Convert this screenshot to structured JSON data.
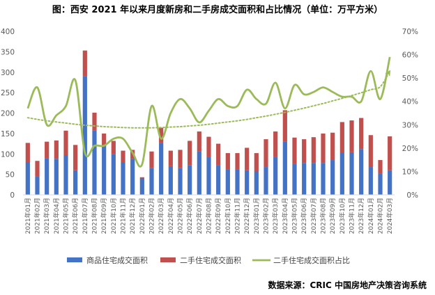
{
  "chart_data": {
    "type": "bar",
    "title": "图：西安 2021 年以来月度新房和二手房成交面积和占比情况（单位：万平方米）",
    "source": "数据来源：CRIC 中国房地产决策咨询系统",
    "categories": [
      "2021年01月",
      "2021年02月",
      "2021年03月",
      "2021年04月",
      "2021年05月",
      "2021年06月",
      "2021年07月",
      "2021年08月",
      "2021年09月",
      "2021年10月",
      "2021年11月",
      "2021年12月",
      "2022年01月",
      "2022年02月",
      "2022年03月",
      "2022年04月",
      "2022年05月",
      "2022年06月",
      "2022年07月",
      "2022年08月",
      "2022年09月",
      "2022年10月",
      "2022年11月",
      "2022年12月",
      "2023年01月",
      "2023年02月",
      "2023年03月",
      "2023年04月",
      "2023年05月",
      "2023年06月",
      "2023年07月",
      "2023年08月",
      "2023年09月",
      "2023年10月",
      "2023年11月",
      "2023年12月",
      "2024年01月",
      "2024年02月",
      "2024年03月"
    ],
    "stacked": true,
    "series": [
      {
        "name": "商品住宅成交面积",
        "type": "bar",
        "axis": "left",
        "color": "#4472C4",
        "values": [
          80,
          45,
          90,
          88,
          97,
          60,
          290,
          158,
          120,
          100,
          80,
          88,
          40,
          65,
          127,
          70,
          65,
          72,
          107,
          92,
          73,
          62,
          62,
          60,
          57,
          68,
          92,
          130,
          75,
          78,
          78,
          78,
          85,
          103,
          104,
          112,
          68,
          52,
          60
        ]
      },
      {
        "name": "二手住宅成交面积",
        "type": "bar",
        "axis": "left",
        "color": "#C0504D",
        "values": [
          47,
          38,
          40,
          45,
          60,
          62,
          63,
          43,
          30,
          32,
          28,
          22,
          3,
          41,
          37,
          38,
          45,
          60,
          48,
          50,
          52,
          40,
          40,
          55,
          45,
          68,
          63,
          77,
          65,
          58,
          63,
          72,
          67,
          75,
          78,
          76,
          78,
          33,
          83
        ]
      },
      {
        "name": "二手住宅成交面积占比",
        "type": "line",
        "axis": "right",
        "color": "#9BBB59",
        "values": [
          0.37,
          0.46,
          0.3,
          0.34,
          0.38,
          0.49,
          0.18,
          0.21,
          0.21,
          0.24,
          0.24,
          0.18,
          0.13,
          0.38,
          0.24,
          0.35,
          0.41,
          0.37,
          0.31,
          0.36,
          0.41,
          0.38,
          0.38,
          0.45,
          0.41,
          0.39,
          0.48,
          0.37,
          0.47,
          0.43,
          0.44,
          0.46,
          0.44,
          0.42,
          0.42,
          0.4,
          0.53,
          0.41,
          0.59
        ]
      },
      {
        "type": "trendline",
        "axis": "right",
        "color": "#9BBB59",
        "values": [
          0.33,
          0.323,
          0.317,
          0.312,
          0.307,
          0.302,
          0.298,
          0.295,
          0.292,
          0.29,
          0.288,
          0.287,
          0.287,
          0.287,
          0.288,
          0.29,
          0.292,
          0.295,
          0.298,
          0.302,
          0.307,
          0.312,
          0.317,
          0.323,
          0.33,
          0.337,
          0.345,
          0.353,
          0.362,
          0.371,
          0.381,
          0.391,
          0.402,
          0.413,
          0.425,
          0.437,
          0.45,
          0.463,
          0.53
        ]
      }
    ],
    "y_left": {
      "min": 0,
      "max": 400,
      "ticks": [
        "0",
        "50",
        "100",
        "150",
        "200",
        "250",
        "300",
        "350",
        "400"
      ],
      "tick_values": [
        0,
        50,
        100,
        150,
        200,
        250,
        300,
        350,
        400
      ]
    },
    "y_right": {
      "min": 0,
      "max": 0.7,
      "ticks": [
        "0%",
        "10%",
        "20%",
        "30%",
        "40%",
        "50%",
        "60%",
        "70%"
      ],
      "tick_values": [
        0,
        0.1,
        0.2,
        0.3,
        0.4,
        0.5,
        0.6,
        0.7
      ]
    },
    "grid": false,
    "legend": {
      "position": "bottom",
      "entries": [
        {
          "label": "商品住宅成交面积",
          "kind": "box",
          "color": "#4472C4"
        },
        {
          "label": "二手住宅成交面积",
          "kind": "box",
          "color": "#C0504D"
        },
        {
          "label": "二手住宅成交面积占比",
          "kind": "line",
          "color": "#9BBB59"
        }
      ]
    }
  }
}
